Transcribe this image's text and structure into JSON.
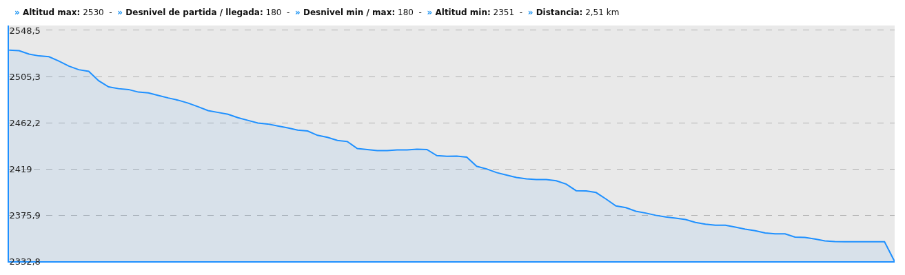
{
  "chart_data": {
    "type": "area",
    "title": "» Altitud max: 2530  -  » Desnivel de partida / llegada: 180  -  » Desnivel min / max: 180  -  » Altitud min: 2351  -  » Distancia: 2,51 km",
    "categories": [
      null,
      null,
      null,
      null,
      null,
      null,
      null,
      null,
      null,
      null,
      null,
      null,
      null,
      null,
      null,
      null,
      null,
      null,
      null,
      null,
      null,
      null,
      null,
      null,
      null,
      null,
      null,
      null,
      null,
      null,
      null,
      null,
      null,
      null,
      null,
      null,
      null,
      null,
      null,
      null,
      null,
      null,
      null,
      null,
      null,
      null,
      null,
      null,
      null,
      null,
      null,
      null,
      null,
      null,
      null,
      null,
      null,
      null,
      null,
      null,
      null,
      null,
      null,
      null,
      null,
      null,
      null,
      null,
      null,
      null,
      null,
      null,
      null,
      null,
      null,
      null,
      null,
      null,
      null,
      null,
      null,
      null,
      null,
      null,
      null,
      null,
      null,
      null,
      null,
      null
    ],
    "series": [
      {
        "color": "#1e90ff",
        "values": [
          2530,
          2529.5,
          2526.3,
          2524.6,
          2523.8,
          2519.8,
          2515.1,
          2511.7,
          2510.2,
          2501.4,
          2495.7,
          2494.0,
          2493.2,
          2490.8,
          2490.0,
          2487.7,
          2485.3,
          2483.2,
          2480.5,
          2477.1,
          2473.5,
          2471.8,
          2470.1,
          2466.9,
          2464.4,
          2461.9,
          2461.0,
          2459.1,
          2457.4,
          2455.3,
          2454.5,
          2450.4,
          2448.5,
          2445.6,
          2444.6,
          2438.0,
          2437.1,
          2436.1,
          2436.1,
          2436.8,
          2436.8,
          2437.4,
          2437.1,
          2431.4,
          2430.8,
          2431.0,
          2430.0,
          2421.5,
          2419.0,
          2415.6,
          2413.3,
          2411.0,
          2409.7,
          2409.1,
          2409.1,
          2408.0,
          2404.8,
          2398.7,
          2398.5,
          2397.0,
          2390.9,
          2384.5,
          2382.9,
          2379.5,
          2377.8,
          2375.7,
          2374.2,
          2373.1,
          2371.7,
          2369.0,
          2367.4,
          2366.4,
          2366.4,
          2364.7,
          2362.8,
          2361.3,
          2359.2,
          2358.4,
          2358.4,
          2355.4,
          2355.0,
          2353.5,
          2351.8,
          2351.2,
          2351,
          2351,
          2351,
          2351,
          2351,
          2332.8
        ]
      }
    ],
    "ylim": [
      2332.8,
      2553
    ],
    "yticks": [
      {
        "value": 2332.8,
        "label": "2332,8"
      },
      {
        "value": 2375.9,
        "label": "2375,9"
      },
      {
        "value": 2419,
        "label": "2419"
      },
      {
        "value": 2462.2,
        "label": "2462,2"
      },
      {
        "value": 2505.3,
        "label": "2505,3"
      },
      {
        "value": 2548.5,
        "label": "2548,5"
      }
    ],
    "grid": "y",
    "tick_labels": "y",
    "marker": "none",
    "line_style": "solid"
  }
}
